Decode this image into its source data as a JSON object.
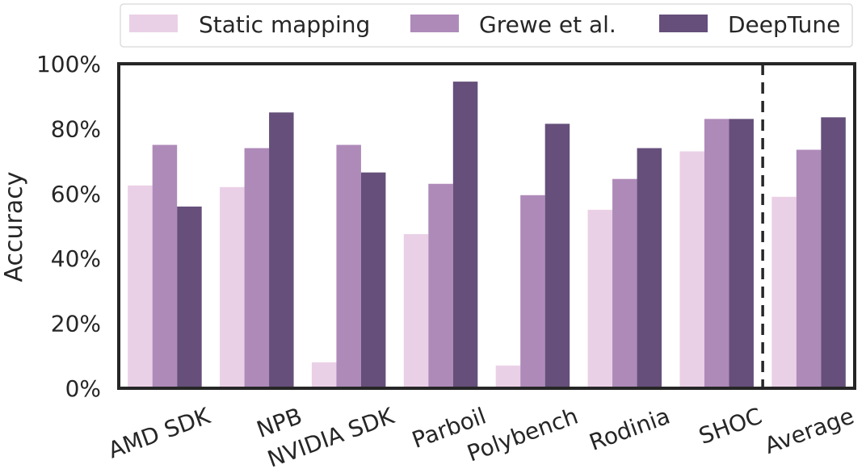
{
  "chart_data": {
    "type": "bar",
    "title": "",
    "xlabel": "",
    "ylabel": "Accuracy",
    "ylim": [
      0,
      100
    ],
    "y_ticks": [
      "0%",
      "20%",
      "40%",
      "60%",
      "80%",
      "100%"
    ],
    "y_tick_values": [
      0,
      20,
      40,
      60,
      80,
      100
    ],
    "categories": [
      "AMD SDK",
      "NPB",
      "NVIDIA SDK",
      "Parboil",
      "Polybench",
      "Rodinia",
      "SHOC",
      "Average"
    ],
    "series": [
      {
        "name": "Static mapping",
        "color": "#ead0e6",
        "values": [
          62.5,
          62.0,
          8.0,
          47.5,
          7.0,
          55.0,
          73.0,
          59.0
        ]
      },
      {
        "name": "Grewe et al.",
        "color": "#ae8ab9",
        "values": [
          75.0,
          74.0,
          75.0,
          63.0,
          59.5,
          64.5,
          83.0,
          73.5
        ]
      },
      {
        "name": "DeepTune",
        "color": "#664f7b",
        "values": [
          56.0,
          85.0,
          66.5,
          94.5,
          81.5,
          74.0,
          83.0,
          83.5
        ]
      }
    ],
    "separator_after_category": "SHOC",
    "grid": false,
    "legend_position": "top-center"
  }
}
